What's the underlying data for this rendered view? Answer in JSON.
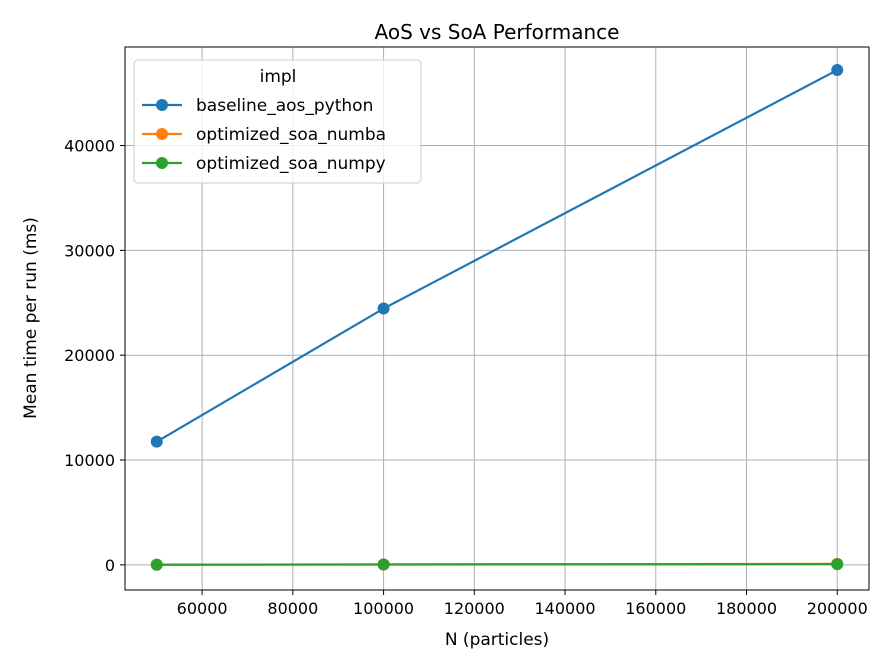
{
  "chart_data": {
    "type": "line",
    "title": "AoS vs SoA Performance",
    "xlabel": "N (particles)",
    "ylabel": "Mean time per run (ms)",
    "x": [
      50000,
      100000,
      200000
    ],
    "xlim": [
      43000,
      207000
    ],
    "ylim": [
      -2400,
      49400
    ],
    "xticks": [
      60000,
      80000,
      100000,
      120000,
      140000,
      160000,
      180000,
      200000
    ],
    "yticks": [
      0,
      10000,
      20000,
      30000,
      40000
    ],
    "grid": true,
    "legend": {
      "title": "impl",
      "placement": "top-left"
    },
    "series": [
      {
        "name": "baseline_aos_python",
        "color": "#1f77b4",
        "values": [
          11750,
          24450,
          47200
        ]
      },
      {
        "name": "optimized_soa_numba",
        "color": "#ff7f0e",
        "values": [
          20,
          40,
          90
        ]
      },
      {
        "name": "optimized_soa_numpy",
        "color": "#2ca02c",
        "values": [
          10,
          30,
          70
        ]
      }
    ]
  }
}
